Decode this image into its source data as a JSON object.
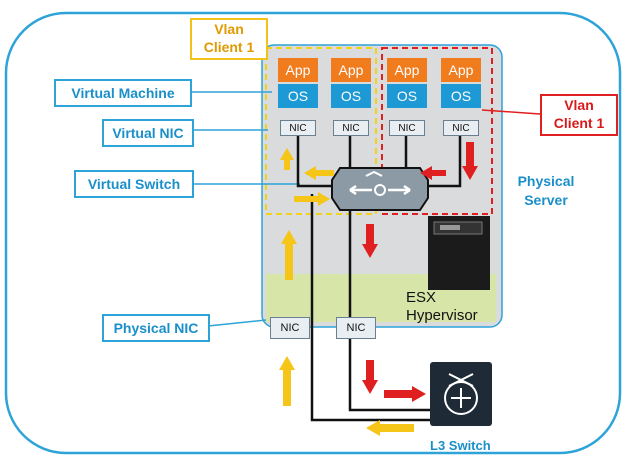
{
  "labels": {
    "virtual_machine": "Virtual Machine",
    "virtual_nic": "Virtual NIC",
    "virtual_switch": "Virtual Switch",
    "physical_nic": "Physical NIC",
    "physical_server_line1": "Physical",
    "physical_server_line2": "Server",
    "l3_switch": "L3 Switch",
    "hypervisor_line1": "ESX",
    "hypervisor_line2": "Hypervisor"
  },
  "vlans": [
    {
      "line1": "Vlan",
      "line2": "Client 1",
      "color": "#f2c21b"
    },
    {
      "line1": "Vlan",
      "line2": "Client 1",
      "color": "#e02020"
    }
  ],
  "vms": [
    {
      "app": "App",
      "os": "OS",
      "nic": "NIC"
    },
    {
      "app": "App",
      "os": "OS",
      "nic": "NIC"
    },
    {
      "app": "App",
      "os": "OS",
      "nic": "NIC"
    },
    {
      "app": "App",
      "os": "OS",
      "nic": "NIC"
    }
  ],
  "physical_nics": [
    "NIC",
    "NIC"
  ],
  "colors": {
    "accent_blue": "#2ea3d8",
    "vlan_yellow": "#f2c21b",
    "vlan_red": "#e02020",
    "app_orange": "#f07c1e",
    "os_blue": "#1d9ad6",
    "server_gray": "#d9dbdd",
    "hypervisor_green": "#d8e5a8"
  }
}
